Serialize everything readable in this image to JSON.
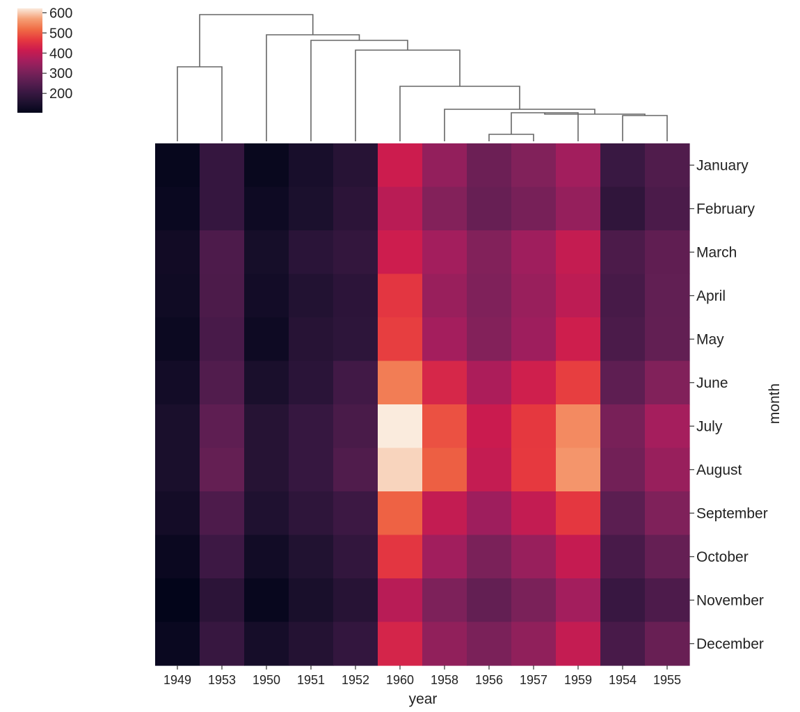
{
  "chart_data": {
    "type": "heatmap",
    "title": "",
    "xlabel": "year",
    "ylabel": "month",
    "x_categories": [
      "1949",
      "1953",
      "1950",
      "1951",
      "1952",
      "1960",
      "1958",
      "1956",
      "1957",
      "1959",
      "1954",
      "1955"
    ],
    "y_categories": [
      "January",
      "February",
      "March",
      "April",
      "May",
      "June",
      "July",
      "August",
      "September",
      "October",
      "November",
      "December"
    ],
    "values": [
      [
        112,
        196,
        115,
        145,
        171,
        417,
        340,
        284,
        315,
        360,
        204,
        242
      ],
      [
        118,
        196,
        126,
        150,
        180,
        391,
        318,
        277,
        301,
        342,
        188,
        233
      ],
      [
        132,
        236,
        141,
        178,
        193,
        419,
        362,
        317,
        356,
        406,
        235,
        267
      ],
      [
        129,
        235,
        135,
        163,
        181,
        461,
        348,
        313,
        348,
        396,
        227,
        269
      ],
      [
        121,
        229,
        125,
        172,
        183,
        472,
        363,
        318,
        355,
        420,
        234,
        270
      ],
      [
        135,
        243,
        149,
        178,
        218,
        535,
        435,
        374,
        422,
        472,
        264,
        315
      ],
      [
        148,
        264,
        170,
        199,
        230,
        622,
        491,
        413,
        465,
        548,
        302,
        364
      ],
      [
        148,
        272,
        170,
        199,
        242,
        606,
        505,
        405,
        467,
        559,
        293,
        347
      ],
      [
        136,
        237,
        158,
        184,
        209,
        508,
        404,
        355,
        404,
        463,
        259,
        312
      ],
      [
        119,
        211,
        133,
        162,
        191,
        461,
        359,
        306,
        347,
        407,
        229,
        274
      ],
      [
        104,
        180,
        114,
        146,
        172,
        390,
        310,
        271,
        305,
        362,
        203,
        237
      ],
      [
        118,
        201,
        140,
        166,
        194,
        432,
        337,
        306,
        336,
        405,
        229,
        278
      ]
    ],
    "colorbar": {
      "ticks": [
        200,
        300,
        400,
        500,
        600
      ],
      "range": [
        104,
        622
      ],
      "colormap": "rocket"
    },
    "dendrogram": {
      "orientation": "top",
      "leaf_order": [
        "1949",
        "1953",
        "1950",
        "1951",
        "1952",
        "1960",
        "1958",
        "1956",
        "1957",
        "1959",
        "1954",
        "1955"
      ]
    }
  }
}
